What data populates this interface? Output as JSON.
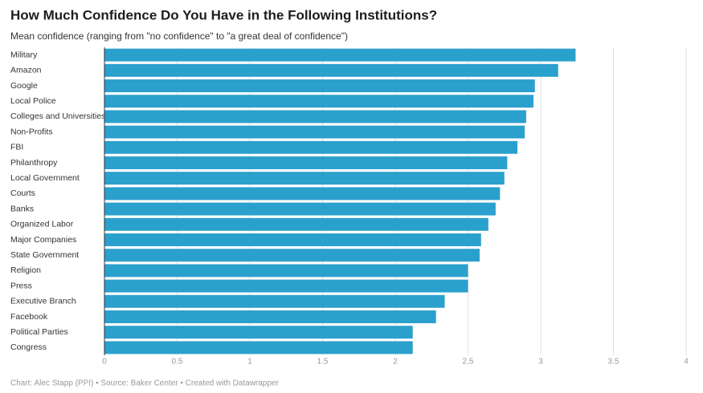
{
  "chart_data": {
    "type": "bar",
    "orientation": "horizontal",
    "title": "How Much Confidence Do You Have in the Following Institutions?",
    "subtitle": "Mean confidence (ranging from \"no confidence\" to \"a great deal of confidence\")",
    "footer": "Chart: Alec Stapp (PPI) • Source: Baker Center • Created with Datawrapper",
    "categories": [
      "Military",
      "Amazon",
      "Google",
      "Local Police",
      "Colleges and Universities",
      "Non-Profits",
      "FBI",
      "Philanthropy",
      "Local Government",
      "Courts",
      "Banks",
      "Organized Labor",
      "Major Companies",
      "State Government",
      "Religion",
      "Press",
      "Executive Branch",
      "Facebook",
      "Political Parties",
      "Congress"
    ],
    "values": [
      3.24,
      3.12,
      2.96,
      2.95,
      2.9,
      2.89,
      2.84,
      2.77,
      2.75,
      2.72,
      2.69,
      2.64,
      2.59,
      2.58,
      2.5,
      2.5,
      2.34,
      2.28,
      2.12,
      2.12
    ],
    "color": "#2aa0cd",
    "xlim": [
      0,
      4
    ],
    "xticks": [
      0,
      0.5,
      1,
      1.5,
      2,
      2.5,
      3,
      3.5,
      4
    ],
    "grid": true
  }
}
